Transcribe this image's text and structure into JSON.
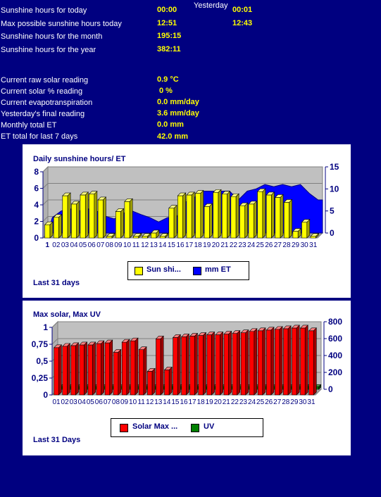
{
  "header": {
    "yesterday_label": "Yesterday",
    "rows": [
      {
        "label": "Sunshine hours for today",
        "value": "00:00",
        "yesterday": "00:01"
      },
      {
        "label": "Max possible sunshine hours today",
        "value": "12:51",
        "yesterday": "12:43"
      },
      {
        "label": "Sunshine hours for the month",
        "value": "195:15"
      },
      {
        "label": "Sunshine hours for the year",
        "value": "382:11"
      }
    ]
  },
  "readings": [
    {
      "label": "Current raw solar reading",
      "value": "0.9 °C"
    },
    {
      "label": "Current solar % reading",
      "value": "0 %"
    },
    {
      "label": "Current evapotranspiration",
      "value": "0.0 mm/day"
    },
    {
      "label": "Yesterday's final reading",
      "value": "3.6 mm/day"
    },
    {
      "label": "Monthly total ET",
      "value": "0.0 mm"
    },
    {
      "label": "ET total for last 7 days",
      "value": "42.0 mm"
    }
  ],
  "colors": {
    "background": "#000080",
    "label_text": "#ffffff",
    "value_text": "#ffff00",
    "chart_title": "#000080",
    "sun_bar": "#ffff00",
    "et_area": "#0000ff",
    "solar_bar": "#ff0000",
    "uv_bar": "#008000",
    "plot_wall": "#c0c0c0"
  },
  "chart_data": [
    {
      "type": "bar",
      "title": "Daily sunshine hours/ ET",
      "footer": "Last 31 days",
      "categories": [
        "1",
        "02",
        "03",
        "04",
        "05",
        "06",
        "07",
        "08",
        "09",
        "10",
        "11",
        "12",
        "13",
        "14",
        "15",
        "16",
        "17",
        "18",
        "19",
        "20",
        "21",
        "22",
        "23",
        "24",
        "25",
        "26",
        "27",
        "28",
        "29",
        "30",
        "31"
      ],
      "series": [
        {
          "name": "Sun shi...",
          "axis": "left",
          "kind": "bar",
          "values": [
            1.6,
            2.5,
            5.1,
            4.1,
            5.2,
            5.3,
            4.6,
            0.2,
            3.2,
            4.4,
            0.2,
            0.2,
            0.6,
            0.2,
            3.6,
            5.1,
            5.2,
            5.4,
            3.8,
            5.5,
            5.3,
            5.0,
            3.9,
            4.1,
            5.6,
            5.2,
            4.9,
            4.3,
            0.8,
            1.9,
            0.2
          ]
        },
        {
          "name": "mm ET",
          "axis": "right",
          "kind": "area",
          "values": [
            3.5,
            5.0,
            5.5,
            5.0,
            5.5,
            5.0,
            3.8,
            3.2,
            4.5,
            5.0,
            4.2,
            3.5,
            2.5,
            3.5,
            3.5,
            7.0,
            8.0,
            9.5,
            9.5,
            9.5,
            9.5,
            7.5,
            9.5,
            10.0,
            11.0,
            10.5,
            11.0,
            10.5,
            11.0,
            9.0,
            7.5
          ]
        }
      ],
      "ylim_left": [
        0,
        8
      ],
      "yticks_left": [
        0,
        2,
        4,
        6,
        8
      ],
      "ylim_right": [
        0,
        15
      ],
      "yticks_right": [
        0,
        5,
        10,
        15
      ],
      "legend": "bottom"
    },
    {
      "type": "bar",
      "title": "Max solar, Max UV",
      "footer": "Last 31 Days",
      "categories": [
        "01",
        "02",
        "03",
        "04",
        "05",
        "06",
        "07",
        "08",
        "09",
        "10",
        "11",
        "12",
        "13",
        "14",
        "15",
        "16",
        "17",
        "18",
        "19",
        "20",
        "21",
        "22",
        "23",
        "24",
        "25",
        "26",
        "27",
        "28",
        "29",
        "30",
        "31"
      ],
      "series": [
        {
          "name": "Solar Max ...",
          "axis": "left",
          "kind": "bar",
          "values": [
            0.7,
            0.72,
            0.73,
            0.74,
            0.74,
            0.76,
            0.77,
            0.63,
            0.78,
            0.8,
            0.67,
            0.35,
            0.83,
            0.37,
            0.85,
            0.86,
            0.87,
            0.88,
            0.89,
            0.89,
            0.9,
            0.91,
            0.92,
            0.94,
            0.95,
            0.96,
            0.97,
            0.98,
            0.99,
            0.99,
            0.95
          ]
        },
        {
          "name": "UV",
          "axis": "right",
          "kind": "bar",
          "values": [
            30,
            30,
            30,
            30,
            30,
            30,
            30,
            30,
            30,
            30,
            30,
            30,
            30,
            30,
            30,
            30,
            30,
            30,
            30,
            30,
            30,
            30,
            30,
            30,
            30,
            30,
            30,
            30,
            30,
            30,
            30
          ]
        }
      ],
      "ylim_left": [
        0,
        1
      ],
      "yticks_left": [
        "0",
        "0,25",
        "0,5",
        "0,75",
        "1"
      ],
      "ylim_right": [
        0,
        800
      ],
      "yticks_right": [
        0,
        200,
        400,
        600,
        800
      ],
      "legend": "bottom"
    }
  ]
}
